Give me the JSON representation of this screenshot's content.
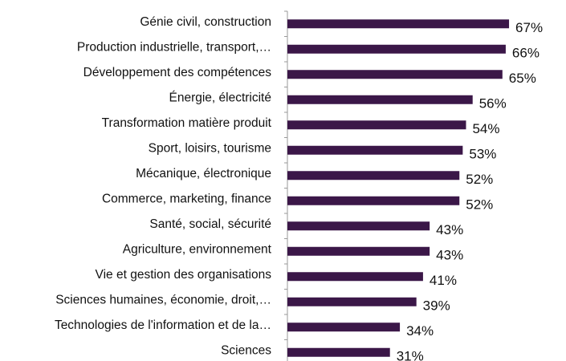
{
  "chart_data": {
    "type": "bar",
    "orientation": "horizontal",
    "categories": [
      "Génie civil, construction",
      "Production industrielle, transport,…",
      "Développement des compétences",
      "Énergie, électricité",
      "Transformation matière produit",
      "Sport, loisirs, tourisme",
      "Mécanique, électronique",
      "Commerce, marketing, finance",
      "Santé, social, sécurité",
      "Agriculture, environnement",
      "Vie et gestion des organisations",
      "Sciences humaines, économie, droit,…",
      "Technologies de l'information et de la…",
      "Sciences"
    ],
    "values": [
      67,
      66,
      65,
      56,
      54,
      53,
      52,
      52,
      43,
      43,
      41,
      39,
      34,
      31
    ],
    "value_labels": [
      "67%",
      "66%",
      "65%",
      "56%",
      "54%",
      "53%",
      "52%",
      "52%",
      "43%",
      "43%",
      "41%",
      "39%",
      "34%",
      "31%"
    ],
    "color": "#3b1748"
  }
}
